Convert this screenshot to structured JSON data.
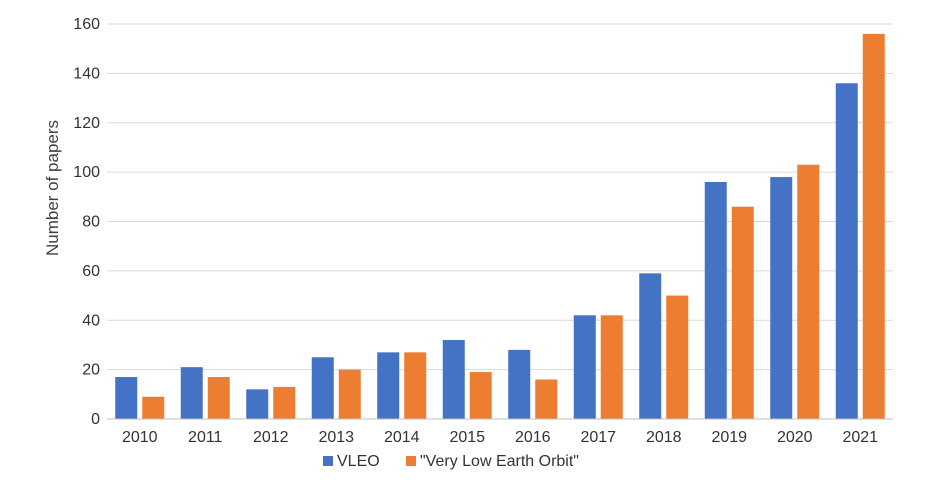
{
  "chart_data": {
    "type": "bar",
    "title": "",
    "xlabel": "",
    "ylabel": "Number of papers",
    "ylim": [
      0,
      160
    ],
    "yticks": [
      "0",
      "20",
      "40",
      "60",
      "80",
      "100",
      "120",
      "140",
      "160"
    ],
    "categories": [
      "2010",
      "2011",
      "2012",
      "2013",
      "2014",
      "2015",
      "2016",
      "2017",
      "2018",
      "2019",
      "2020",
      "2021"
    ],
    "grid": "horizontal",
    "legend_position": "bottom",
    "series": [
      {
        "name": "VLEO",
        "color": "#4472C4",
        "values": [
          17,
          21,
          12,
          25,
          27,
          32,
          28,
          42,
          59,
          96,
          98,
          136
        ]
      },
      {
        "name": "\"Very Low Earth Orbit\"",
        "color": "#ED7D31",
        "values": [
          9,
          17,
          13,
          20,
          27,
          19,
          16,
          42,
          50,
          86,
          103,
          156
        ]
      }
    ]
  }
}
